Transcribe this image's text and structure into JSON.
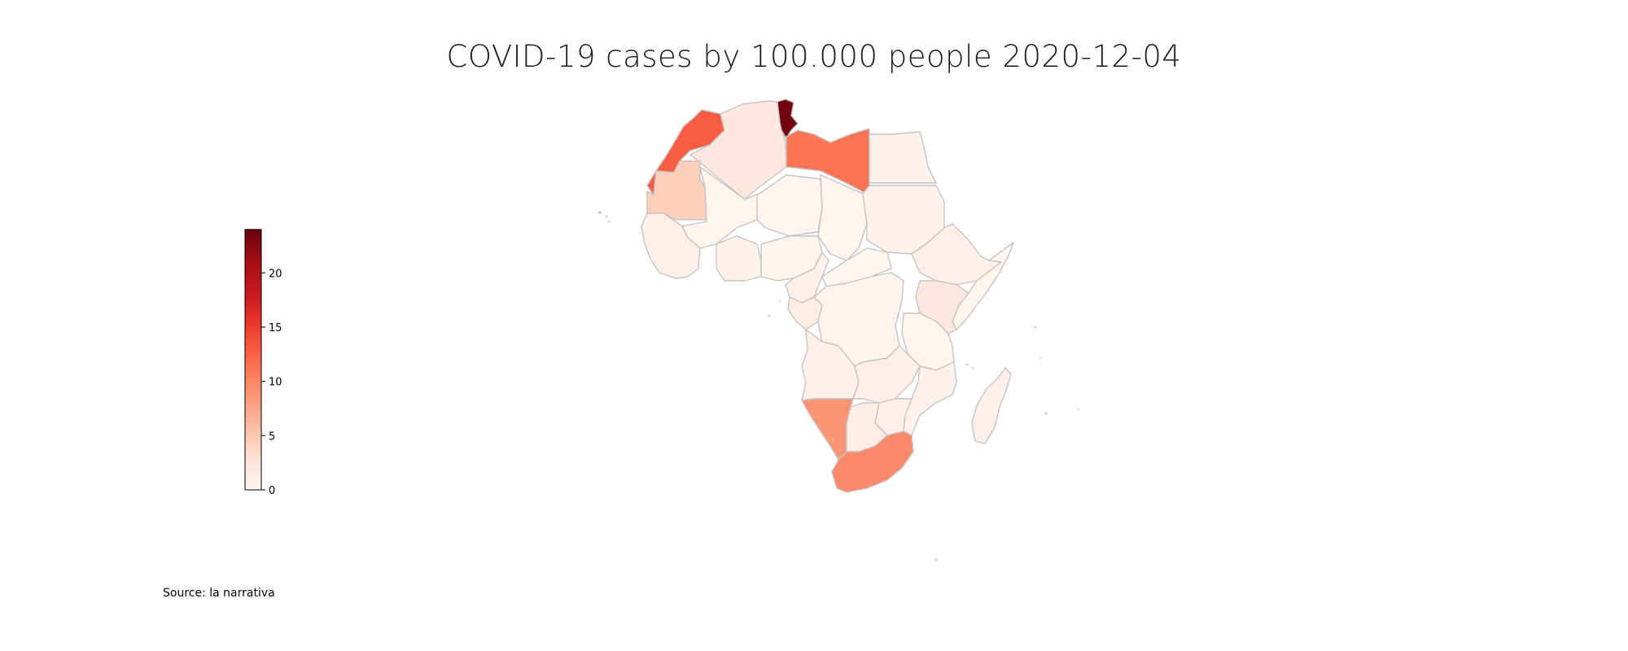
{
  "title": "COVID-19 cases by 100.000 people 2020-12-04",
  "source": "Source: la narrativa",
  "colorbar": {
    "min": 0,
    "max": 24,
    "ticks": [
      0,
      5,
      10,
      15,
      20
    ],
    "colormap": [
      "#fff5f0",
      "#fee0d2",
      "#fcbba1",
      "#fc9272",
      "#fb6a4a",
      "#ef3b2c",
      "#cb181d",
      "#a50f15",
      "#67000d"
    ]
  },
  "regions": [
    {
      "name": "Tunisia",
      "value": 23.5
    },
    {
      "name": "Morocco",
      "value": 12.8
    },
    {
      "name": "Libya",
      "value": 11.2
    },
    {
      "name": "South Africa",
      "value": 9.6
    },
    {
      "name": "Namibia",
      "value": 8.8
    },
    {
      "name": "Mauritania",
      "value": 4.5
    },
    {
      "name": "Algeria",
      "value": 1.9
    },
    {
      "name": "Kenya",
      "value": 1.8
    },
    {
      "name": "Botswana",
      "value": 1.1
    },
    {
      "name": "Egypt",
      "value": 0.5
    },
    {
      "name": "Ethiopia",
      "value": 0.8
    },
    {
      "name": "Nigeria",
      "value": 0.3
    },
    {
      "name": "Ghana",
      "value": 0.6
    },
    {
      "name": "Cameroon",
      "value": 0.7
    },
    {
      "name": "Gabon",
      "value": 1.2
    },
    {
      "name": "DR Congo",
      "value": 0.3
    },
    {
      "name": "Angola",
      "value": 0.6
    },
    {
      "name": "Zambia",
      "value": 0.8
    },
    {
      "name": "Zimbabwe",
      "value": 0.7
    },
    {
      "name": "Mozambique",
      "value": 0.4
    },
    {
      "name": "Tanzania",
      "value": 0.2
    },
    {
      "name": "Madagascar",
      "value": 0.6
    },
    {
      "name": "Sudan",
      "value": 0.4
    },
    {
      "name": "Mali",
      "value": 0.2
    },
    {
      "name": "Niger",
      "value": 0.1
    },
    {
      "name": "Chad",
      "value": 0.2
    },
    {
      "name": "Senegal",
      "value": 0.9
    },
    {
      "name": "Somalia",
      "value": 0.2
    }
  ]
}
